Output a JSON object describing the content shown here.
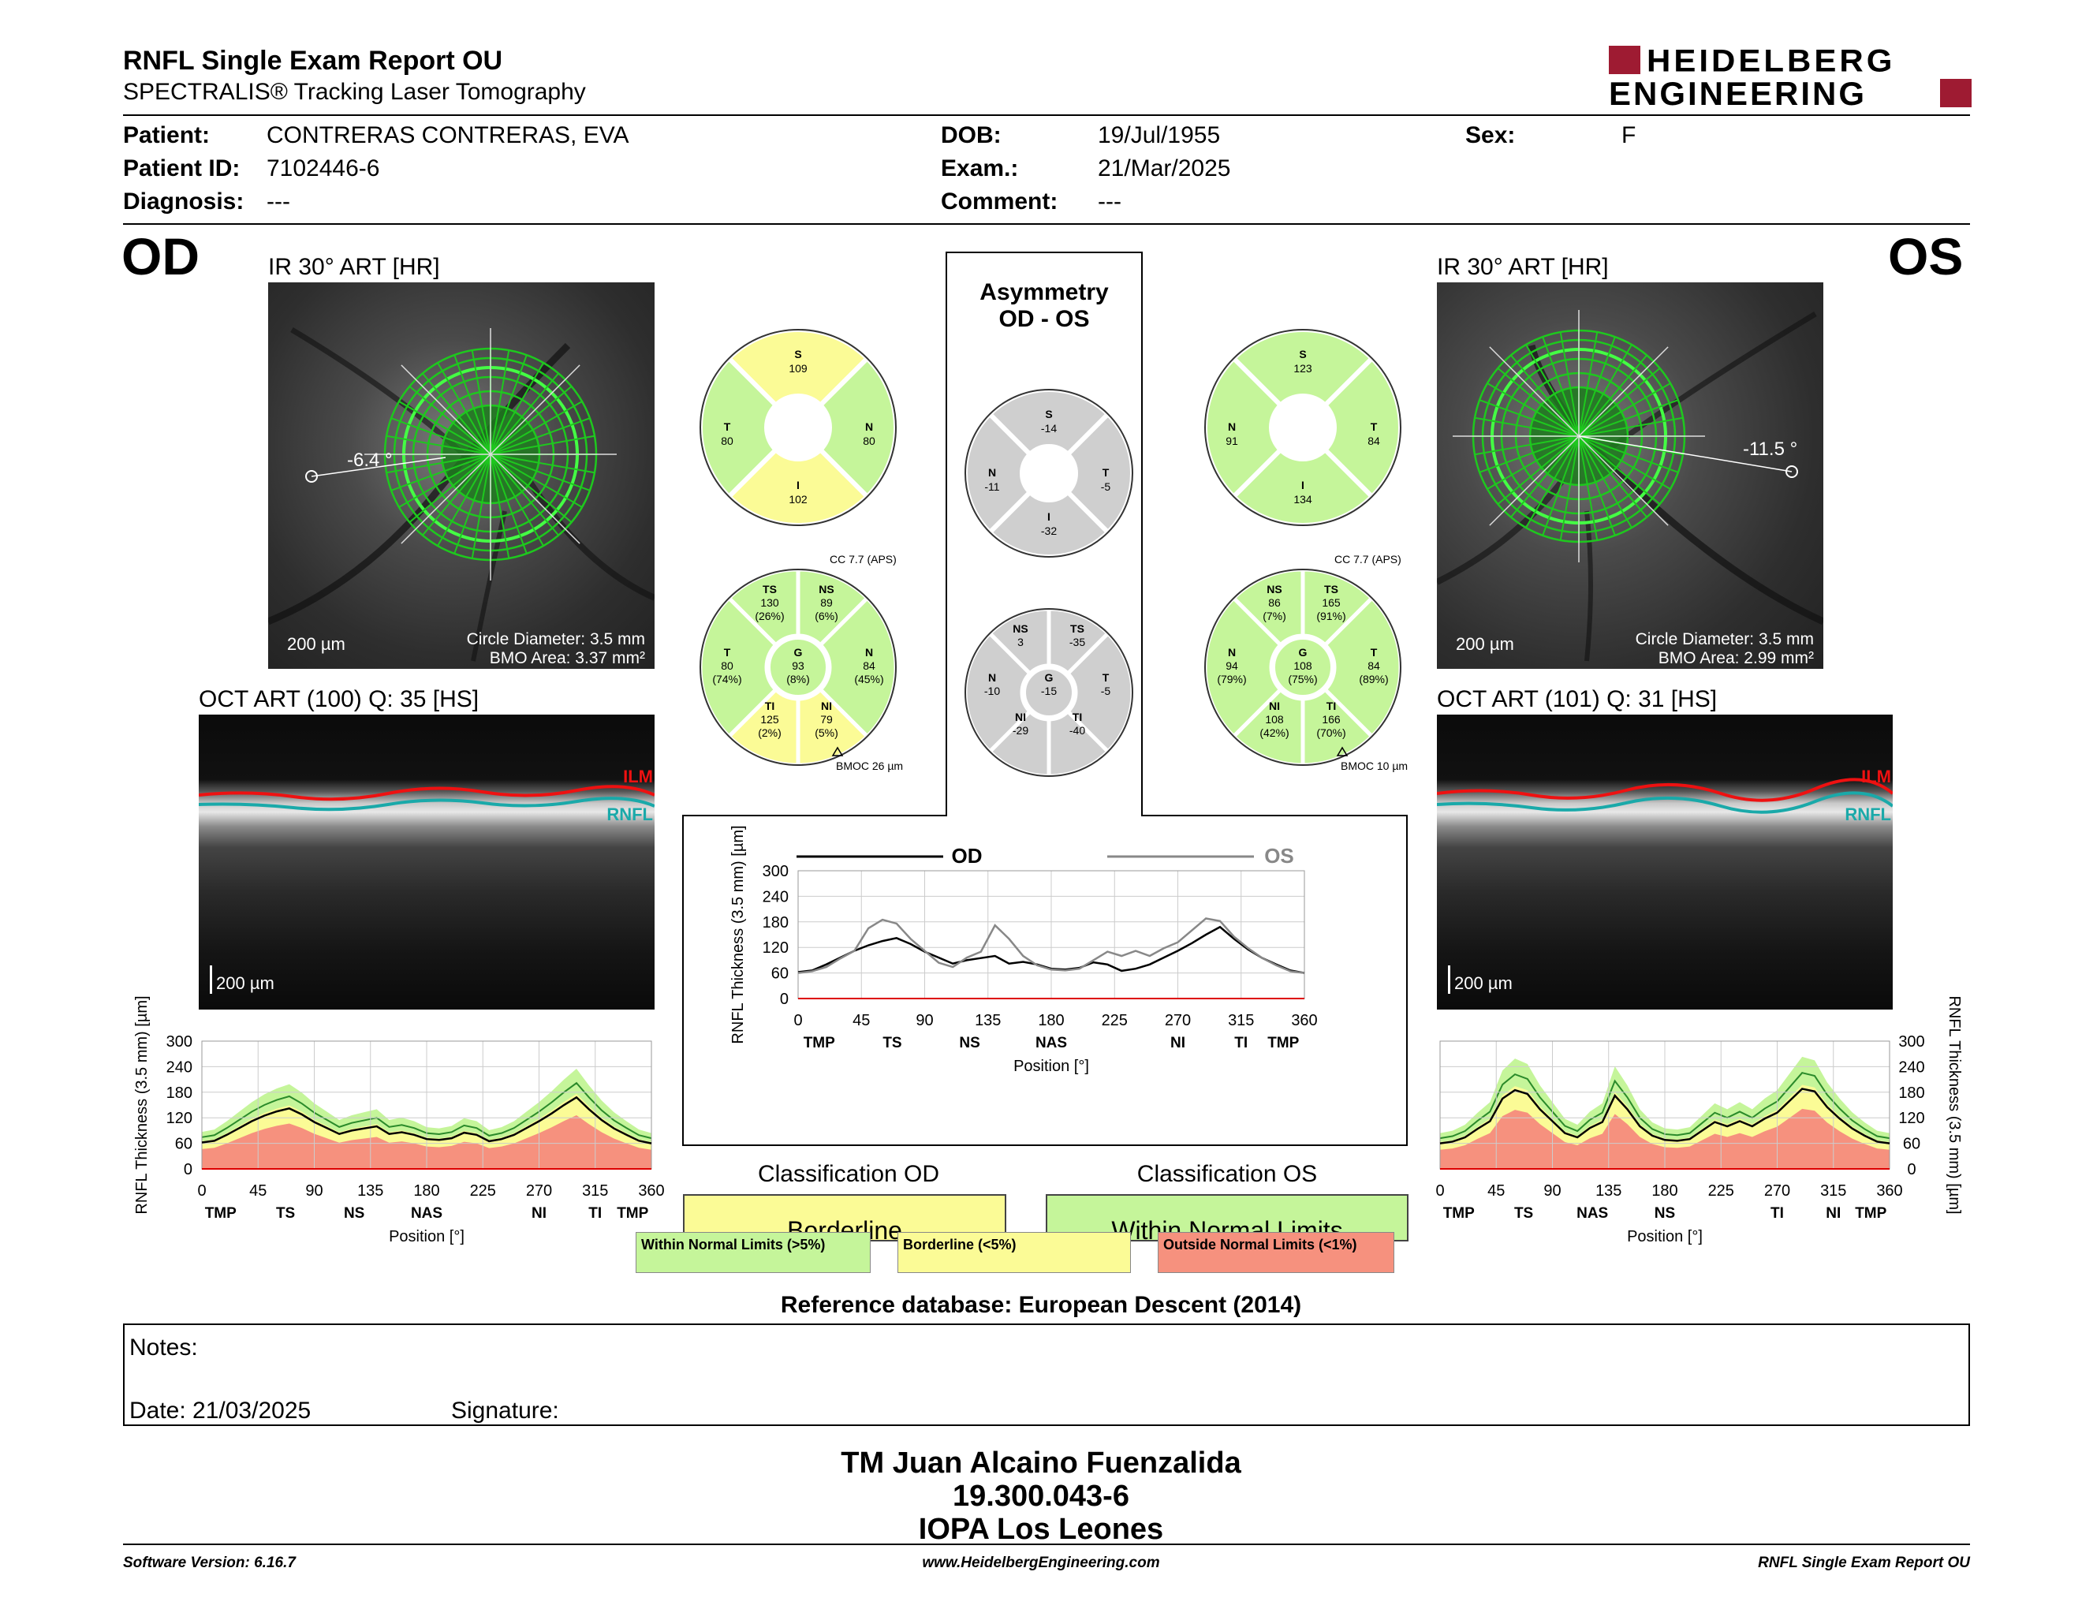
{
  "header": {
    "title": "RNFL Single Exam Report OU",
    "subtitle": "SPECTRALIS® Tracking Laser Tomography",
    "logo_line1": "HEIDELBERG",
    "logo_line2": "ENGINEERING"
  },
  "patient": {
    "patient_label": "Patient:",
    "patient": "CONTRERAS CONTRERAS, EVA",
    "id_label": "Patient ID:",
    "id": "7102446-6",
    "diagnosis_label": "Diagnosis:",
    "diagnosis": "---",
    "dob_label": "DOB:",
    "dob": "19/Jul/1955",
    "exam_label": "Exam.:",
    "exam": "21/Mar/2025",
    "comment_label": "Comment:",
    "comment": "---",
    "sex_label": "Sex:",
    "sex": "F"
  },
  "od": {
    "eye": "OD",
    "ir_title": "IR 30° ART [HR]",
    "angle": "-6.4 °",
    "scale": "200 µm",
    "circle_diameter": "Circle Diameter: 3.5 mm",
    "bmo_area": "BMO Area: 3.37 mm²",
    "oct_title": "OCT ART (100) Q: 35 [HS]",
    "oct_scale": "200 µm",
    "ilm": "ILM",
    "rnfl": "RNFL",
    "quad": {
      "S": "S",
      "S_v": "109",
      "N": "N",
      "N_v": "80",
      "I": "I",
      "I_v": "102",
      "T": "T",
      "T_v": "80"
    },
    "sector": {
      "cc": "CC 7.7 (APS)",
      "bmoc": "BMOC 26 µm",
      "TS": "TS",
      "TS_v": "130",
      "TS_p": "(26%)",
      "NS": "NS",
      "NS_v": "89",
      "NS_p": "(6%)",
      "T": "T",
      "T_v": "80",
      "T_p": "(74%)",
      "G": "G",
      "G_v": "93",
      "G_p": "(8%)",
      "N": "N",
      "N_v": "84",
      "N_p": "(45%)",
      "TI": "TI",
      "TI_v": "125",
      "TI_p": "(2%)",
      "NI": "NI",
      "NI_v": "79",
      "NI_p": "(5%)"
    },
    "classification_title": "Classification OD",
    "classification": "Borderline"
  },
  "os": {
    "eye": "OS",
    "ir_title": "IR 30° ART [HR]",
    "angle": "-11.5 °",
    "scale": "200 µm",
    "circle_diameter": "Circle Diameter: 3.5 mm",
    "bmo_area": "BMO Area: 2.99 mm²",
    "oct_title": "OCT ART (101) Q: 31 [HS]",
    "oct_scale": "200 µm",
    "ilm": "ILM",
    "rnfl": "RNFL",
    "quad": {
      "S": "S",
      "S_v": "123",
      "N": "N",
      "N_v": "91",
      "I": "I",
      "I_v": "134",
      "T": "T",
      "T_v": "84"
    },
    "sector": {
      "cc": "CC 7.7 (APS)",
      "bmoc": "BMOC 10 µm",
      "NS": "NS",
      "NS_v": "86",
      "NS_p": "(7%)",
      "TS": "TS",
      "TS_v": "165",
      "TS_p": "(91%)",
      "N": "N",
      "N_v": "94",
      "N_p": "(79%)",
      "G": "G",
      "G_v": "108",
      "G_p": "(75%)",
      "T": "T",
      "T_v": "84",
      "T_p": "(89%)",
      "NI": "NI",
      "NI_v": "108",
      "NI_p": "(42%)",
      "TI": "TI",
      "TI_v": "166",
      "TI_p": "(70%)"
    },
    "classification_title": "Classification OS",
    "classification": "Within Normal Limits"
  },
  "asymmetry": {
    "title1": "Asymmetry",
    "title2": "OD - OS",
    "quad": {
      "S": "S",
      "S_v": "-14",
      "N": "N",
      "N_v": "-11",
      "T": "T",
      "T_v": "-5",
      "I": "I",
      "I_v": "-32"
    },
    "sector": {
      "NS": "NS",
      "NS_v": "3",
      "TS": "TS",
      "TS_v": "-35",
      "N": "N",
      "N_v": "-10",
      "G": "G",
      "G_v": "-15",
      "T": "T",
      "T_v": "-5",
      "NI": "NI",
      "NI_v": "-29",
      "TI": "TI",
      "TI_v": "-40"
    }
  },
  "legend": {
    "wnl": "Within Normal Limits (>5%)",
    "bl": "Borderline (<5%)",
    "onl": "Outside Normal Limits (<1%)",
    "colors": {
      "wnl": "#c5f59a",
      "bl": "#fbfb96",
      "onl": "#f6917e"
    }
  },
  "chart_data": [
    {
      "type": "line",
      "title": "",
      "ylabel": "RNFL Thickness (3.5 mm) [µm]",
      "xlabel": "Position [°]",
      "xlim": [
        0,
        360
      ],
      "ylim": [
        0,
        300
      ],
      "xticks": [
        0,
        45,
        90,
        135,
        180,
        225,
        270,
        315,
        360
      ],
      "yticks": [
        0,
        60,
        120,
        180,
        240,
        300
      ],
      "sectors": [
        "TMP",
        "TS",
        "NS",
        "NAS",
        "NI",
        "TI",
        "TMP"
      ],
      "legend": [
        "OD",
        "OS"
      ],
      "x": [
        0,
        10,
        20,
        30,
        40,
        50,
        60,
        70,
        80,
        90,
        100,
        110,
        120,
        130,
        140,
        150,
        160,
        170,
        180,
        190,
        200,
        210,
        220,
        230,
        240,
        250,
        260,
        270,
        280,
        290,
        300,
        310,
        320,
        330,
        340,
        350,
        360
      ],
      "series": [
        {
          "name": "OD",
          "values": [
            62,
            66,
            80,
            96,
            112,
            125,
            135,
            142,
            128,
            110,
            96,
            82,
            90,
            95,
            100,
            82,
            86,
            80,
            70,
            68,
            72,
            85,
            80,
            65,
            70,
            80,
            96,
            112,
            130,
            150,
            168,
            140,
            115,
            95,
            80,
            66,
            60
          ]
        },
        {
          "name": "OS",
          "values": [
            60,
            64,
            74,
            94,
            112,
            165,
            185,
            176,
            140,
            112,
            84,
            74,
            96,
            110,
            172,
            140,
            100,
            78,
            68,
            66,
            70,
            90,
            110,
            100,
            112,
            100,
            118,
            132,
            160,
            188,
            182,
            145,
            118,
            95,
            78,
            64,
            60
          ]
        }
      ]
    },
    {
      "type": "area",
      "ylabel": "RNFL Thickness (3.5 mm) [µm]",
      "xlabel": "Position [°]",
      "xlim": [
        0,
        360
      ],
      "ylim": [
        0,
        300
      ],
      "xticks": [
        0,
        45,
        90,
        135,
        180,
        225,
        270,
        315,
        360
      ],
      "yticks": [
        0,
        60,
        120,
        180,
        240,
        300
      ],
      "sectors": [
        "TMP",
        "TS",
        "NS",
        "NAS",
        "NI",
        "TI",
        "TMP"
      ],
      "x": [
        0,
        10,
        20,
        30,
        40,
        50,
        60,
        70,
        80,
        90,
        100,
        110,
        120,
        130,
        140,
        150,
        160,
        170,
        180,
        190,
        200,
        210,
        220,
        230,
        240,
        250,
        260,
        270,
        280,
        290,
        300,
        310,
        320,
        330,
        340,
        350,
        360
      ],
      "series": [
        {
          "name": "OD",
          "values": [
            62,
            66,
            80,
            96,
            112,
            125,
            135,
            142,
            128,
            110,
            96,
            82,
            90,
            95,
            100,
            82,
            86,
            80,
            70,
            68,
            72,
            85,
            80,
            65,
            70,
            80,
            96,
            112,
            130,
            150,
            168,
            140,
            115,
            95,
            80,
            66,
            60
          ]
        }
      ]
    },
    {
      "type": "area",
      "ylabel": "RNFL Thickness (3.5 mm) [µm]",
      "xlabel": "Position [°]",
      "xlim": [
        0,
        360
      ],
      "ylim": [
        0,
        300
      ],
      "xticks": [
        0,
        45,
        90,
        135,
        180,
        225,
        270,
        315,
        360
      ],
      "yticks": [
        0,
        60,
        120,
        180,
        240,
        300
      ],
      "sectors": [
        "TMP",
        "TS",
        "NAS",
        "NS",
        "TI",
        "NI",
        "TMP"
      ],
      "x": [
        0,
        10,
        20,
        30,
        40,
        50,
        60,
        70,
        80,
        90,
        100,
        110,
        120,
        130,
        140,
        150,
        160,
        170,
        180,
        190,
        200,
        210,
        220,
        230,
        240,
        250,
        260,
        270,
        280,
        290,
        300,
        310,
        320,
        330,
        340,
        350,
        360
      ],
      "series": [
        {
          "name": "OS",
          "values": [
            60,
            64,
            74,
            94,
            112,
            165,
            185,
            176,
            140,
            112,
            84,
            74,
            96,
            110,
            172,
            140,
            100,
            78,
            68,
            66,
            70,
            90,
            110,
            100,
            112,
            100,
            118,
            132,
            160,
            188,
            182,
            145,
            118,
            95,
            78,
            64,
            60
          ]
        }
      ]
    }
  ],
  "reference": "Reference database: European Descent (2014)",
  "notes": {
    "label": "Notes:",
    "date": "Date: 21/03/2025",
    "signature": "Signature:"
  },
  "operator": {
    "name": "TM Juan Alcaino Fuenzalida",
    "rut": "19.300.043-6",
    "clinic": "IOPA Los Leones"
  },
  "footer": {
    "version": "Software Version: 6.16.7",
    "url": "www.HeidelbergEngineering.com",
    "report": "RNFL Single Exam Report OU"
  }
}
